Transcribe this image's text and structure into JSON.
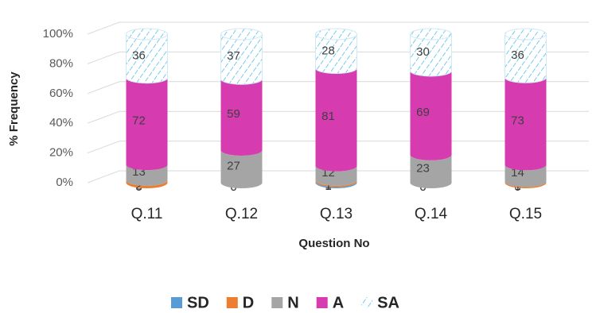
{
  "chart_data": {
    "type": "bar",
    "stacking": "percent",
    "x_label": "Question No",
    "y_label": "% Frequency",
    "categories": [
      "Q.11",
      "Q.12",
      "Q.13",
      "Q.14",
      "Q.15"
    ],
    "series": [
      {
        "name": "SD",
        "color": "#5b9bd5",
        "values": [
          0,
          0,
          1,
          0,
          0
        ]
      },
      {
        "name": "D",
        "color": "#ed7d31",
        "values": [
          2,
          0,
          1,
          0,
          1
        ]
      },
      {
        "name": "N",
        "color": "#a5a5a5",
        "values": [
          13,
          27,
          12,
          23,
          14
        ]
      },
      {
        "name": "A",
        "color": "#d63bb0",
        "values": [
          72,
          59,
          81,
          69,
          73
        ]
      },
      {
        "name": "SA",
        "color": "#3db6e6",
        "values": [
          36,
          37,
          28,
          30,
          36
        ]
      }
    ],
    "ylim": [
      0,
      100
    ],
    "yticks": [
      {
        "value": 0,
        "label": "0%"
      },
      {
        "value": 20,
        "label": "20%"
      },
      {
        "value": 40,
        "label": "40%"
      },
      {
        "value": 60,
        "label": "60%"
      },
      {
        "value": 80,
        "label": "80%"
      },
      {
        "value": 100,
        "label": "100%"
      }
    ],
    "grid": true,
    "legend": "bottom"
  }
}
